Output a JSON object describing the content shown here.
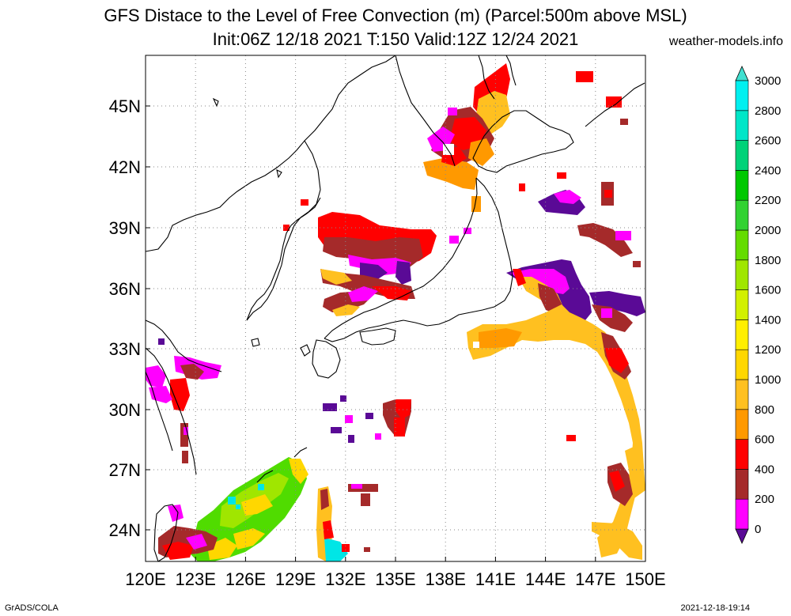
{
  "title": {
    "line1": "GFS Distace to the Level of Free Convection (m) (Parcel:500m above MSL)",
    "line2": "Init:06Z 12/18 2021 T:150 Valid:12Z 12/24 2021",
    "site": "weather-models.info"
  },
  "footer": {
    "left": "GrADS/COLA",
    "right": "2021-12-18-19:14"
  },
  "axes": {
    "lon_labels": [
      "120E",
      "123E",
      "126E",
      "129E",
      "132E",
      "135E",
      "138E",
      "141E",
      "144E",
      "147E",
      "150E"
    ],
    "lat_labels": [
      "24N",
      "27N",
      "30N",
      "33N",
      "36N",
      "39N",
      "42N",
      "45N"
    ]
  },
  "colorbar": {
    "levels": [
      "0",
      "200",
      "400",
      "600",
      "800",
      "1000",
      "1200",
      "1400",
      "1600",
      "1800",
      "2000",
      "2200",
      "2400",
      "2600",
      "2800",
      "3000"
    ],
    "colors": [
      "#5a0a96",
      "#ff00ff",
      "#a52a2a",
      "#ff0000",
      "#ff9900",
      "#ffc020",
      "#ffd700",
      "#ffef00",
      "#d2f000",
      "#a0e600",
      "#64dc00",
      "#32d232",
      "#00c800",
      "#00d278",
      "#00e6c8",
      "#00f0f0",
      "#40e0d0"
    ],
    "under_color": "#5a0a96",
    "over_color": "#40e0d0"
  },
  "map_colors": {
    "purple": "#5a0a96",
    "magenta": "#ff00ff",
    "brown": "#a52a2a",
    "red": "#ff0000",
    "orange": "#ff9900",
    "lightorange": "#ffc020",
    "yellow": "#ffd700",
    "green": "#50dc00",
    "lightgreen": "#a0e600",
    "cyan": "#00e6e6"
  }
}
